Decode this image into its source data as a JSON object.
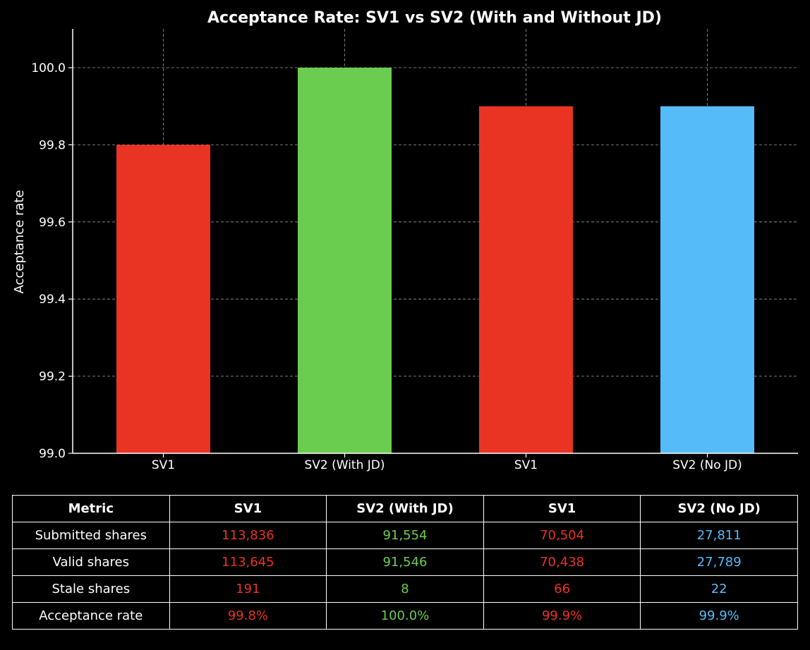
{
  "colors": {
    "background": "#000000",
    "text": "#ffffff",
    "grid": "#cccccc",
    "sv1": "#e93424",
    "sv2_with_jd": "#6bcd50",
    "sv2_no_jd": "#56bcf9"
  },
  "chart_data": {
    "type": "bar",
    "title": "Acceptance Rate: SV1 vs SV2 (With and Without JD)",
    "xlabel": "",
    "ylabel": "Acceptance rate",
    "categories": [
      "SV1",
      "SV2 (With JD)",
      "SV1",
      "SV2 (No JD)"
    ],
    "values": [
      99.8,
      100.0,
      99.9,
      99.9
    ],
    "bar_colors": [
      "#e93424",
      "#6bcd50",
      "#e93424",
      "#56bcf9"
    ],
    "ylim": [
      99.0,
      100.1
    ],
    "yticks": [
      99.0,
      99.2,
      99.4,
      99.6,
      99.8,
      100.0
    ],
    "ytick_labels": [
      "99.0",
      "99.2",
      "99.4",
      "99.6",
      "99.8",
      "100.0"
    ],
    "grid": true
  },
  "table": {
    "headers": [
      "Metric",
      "SV1",
      "SV2 (With JD)",
      "SV1",
      "SV2 (No JD)"
    ],
    "rows": [
      {
        "label": "Submitted shares",
        "cells": [
          "113,836",
          "91,554",
          "70,504",
          "27,811"
        ]
      },
      {
        "label": "Valid shares",
        "cells": [
          "113,645",
          "91,546",
          "70,438",
          "27,789"
        ]
      },
      {
        "label": "Stale shares",
        "cells": [
          "191",
          "8",
          "66",
          "22"
        ]
      },
      {
        "label": "Acceptance rate",
        "cells": [
          "99.8%",
          "100.0%",
          "99.9%",
          "99.9%"
        ]
      }
    ],
    "column_colors": [
      "#e93424",
      "#6bcd50",
      "#e93424",
      "#56bcf9"
    ]
  }
}
